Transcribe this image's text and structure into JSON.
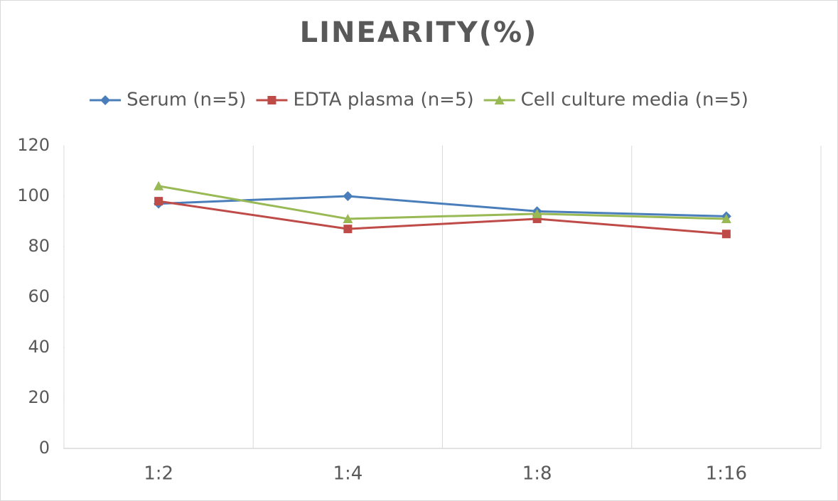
{
  "chart_data": {
    "type": "line",
    "title": "LINEARITY(%)",
    "categories": [
      "1:2",
      "1:4",
      "1:8",
      "1:16"
    ],
    "series": [
      {
        "name": "Serum (n=5)",
        "color": "#4a7ebb",
        "marker": "diamond",
        "values": [
          97,
          100,
          94,
          92
        ]
      },
      {
        "name": "EDTA plasma (n=5)",
        "color": "#be4b48",
        "marker": "square",
        "values": [
          98,
          87,
          91,
          85
        ]
      },
      {
        "name": "Cell culture media (n=5)",
        "color": "#98b954",
        "marker": "triangle",
        "values": [
          104,
          91,
          93,
          91
        ]
      }
    ],
    "ylim": [
      0,
      120
    ],
    "yticks": [
      0,
      20,
      40,
      60,
      80,
      100,
      120
    ],
    "grid": "vertical",
    "legend": "top"
  }
}
